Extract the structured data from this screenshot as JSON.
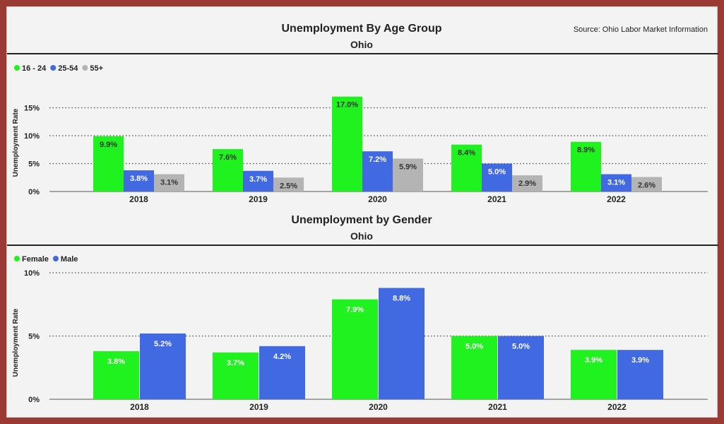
{
  "source": "Source: Ohio Labor Market Information",
  "chart_data": [
    {
      "type": "bar",
      "title": "Unemployment By Age Group",
      "subtitle": "Ohio",
      "ylabel": "Unemployment Rate",
      "xlabel": "",
      "categories": [
        "2018",
        "2019",
        "2020",
        "2021",
        "2022"
      ],
      "ylim": [
        0,
        17
      ],
      "yticks": [
        0,
        5,
        10,
        15
      ],
      "tick_labels": [
        "0%",
        "5%",
        "10%",
        "15%"
      ],
      "grid": true,
      "legend_position": "top-left",
      "series": [
        {
          "name": "16 - 24",
          "color": "#1ff21f",
          "label_color": "#333333",
          "values": [
            9.9,
            7.6,
            17.0,
            8.4,
            8.9
          ],
          "labels": [
            "9.9%",
            "7.6%",
            "17.0%",
            "8.4%",
            "8.9%"
          ]
        },
        {
          "name": "25-54",
          "color": "#4169e1",
          "label_color": "#ffffff",
          "values": [
            3.8,
            3.7,
            7.2,
            5.0,
            3.1
          ],
          "labels": [
            "3.8%",
            "3.7%",
            "7.2%",
            "5.0%",
            "3.1%"
          ]
        },
        {
          "name": "55+",
          "color": "#b4b4b4",
          "label_color": "#333333",
          "values": [
            3.1,
            2.5,
            5.9,
            2.9,
            2.6
          ],
          "labels": [
            "3.1%",
            "2.5%",
            "5.9%",
            "2.9%",
            "2.6%"
          ]
        }
      ]
    },
    {
      "type": "bar",
      "title": "Unemployment by Gender",
      "subtitle": "Ohio",
      "ylabel": "Unemployment Rate",
      "xlabel": "",
      "categories": [
        "2018",
        "2019",
        "2020",
        "2021",
        "2022"
      ],
      "ylim": [
        0,
        10
      ],
      "yticks": [
        0,
        5,
        10
      ],
      "tick_labels": [
        "0%",
        "5%",
        "10%"
      ],
      "grid": true,
      "legend_position": "top-left",
      "series": [
        {
          "name": "Female",
          "color": "#1ff21f",
          "label_color": "#ffffff",
          "values": [
            3.8,
            3.7,
            7.9,
            5.0,
            3.9
          ],
          "labels": [
            "3.8%",
            "3.7%",
            "7.9%",
            "5.0%",
            "3.9%"
          ]
        },
        {
          "name": "Male",
          "color": "#4169e1",
          "label_color": "#ffffff",
          "values": [
            5.2,
            4.2,
            8.8,
            5.0,
            3.9
          ],
          "labels": [
            "5.2%",
            "4.2%",
            "8.8%",
            "5.0%",
            "3.9%"
          ]
        }
      ]
    }
  ]
}
